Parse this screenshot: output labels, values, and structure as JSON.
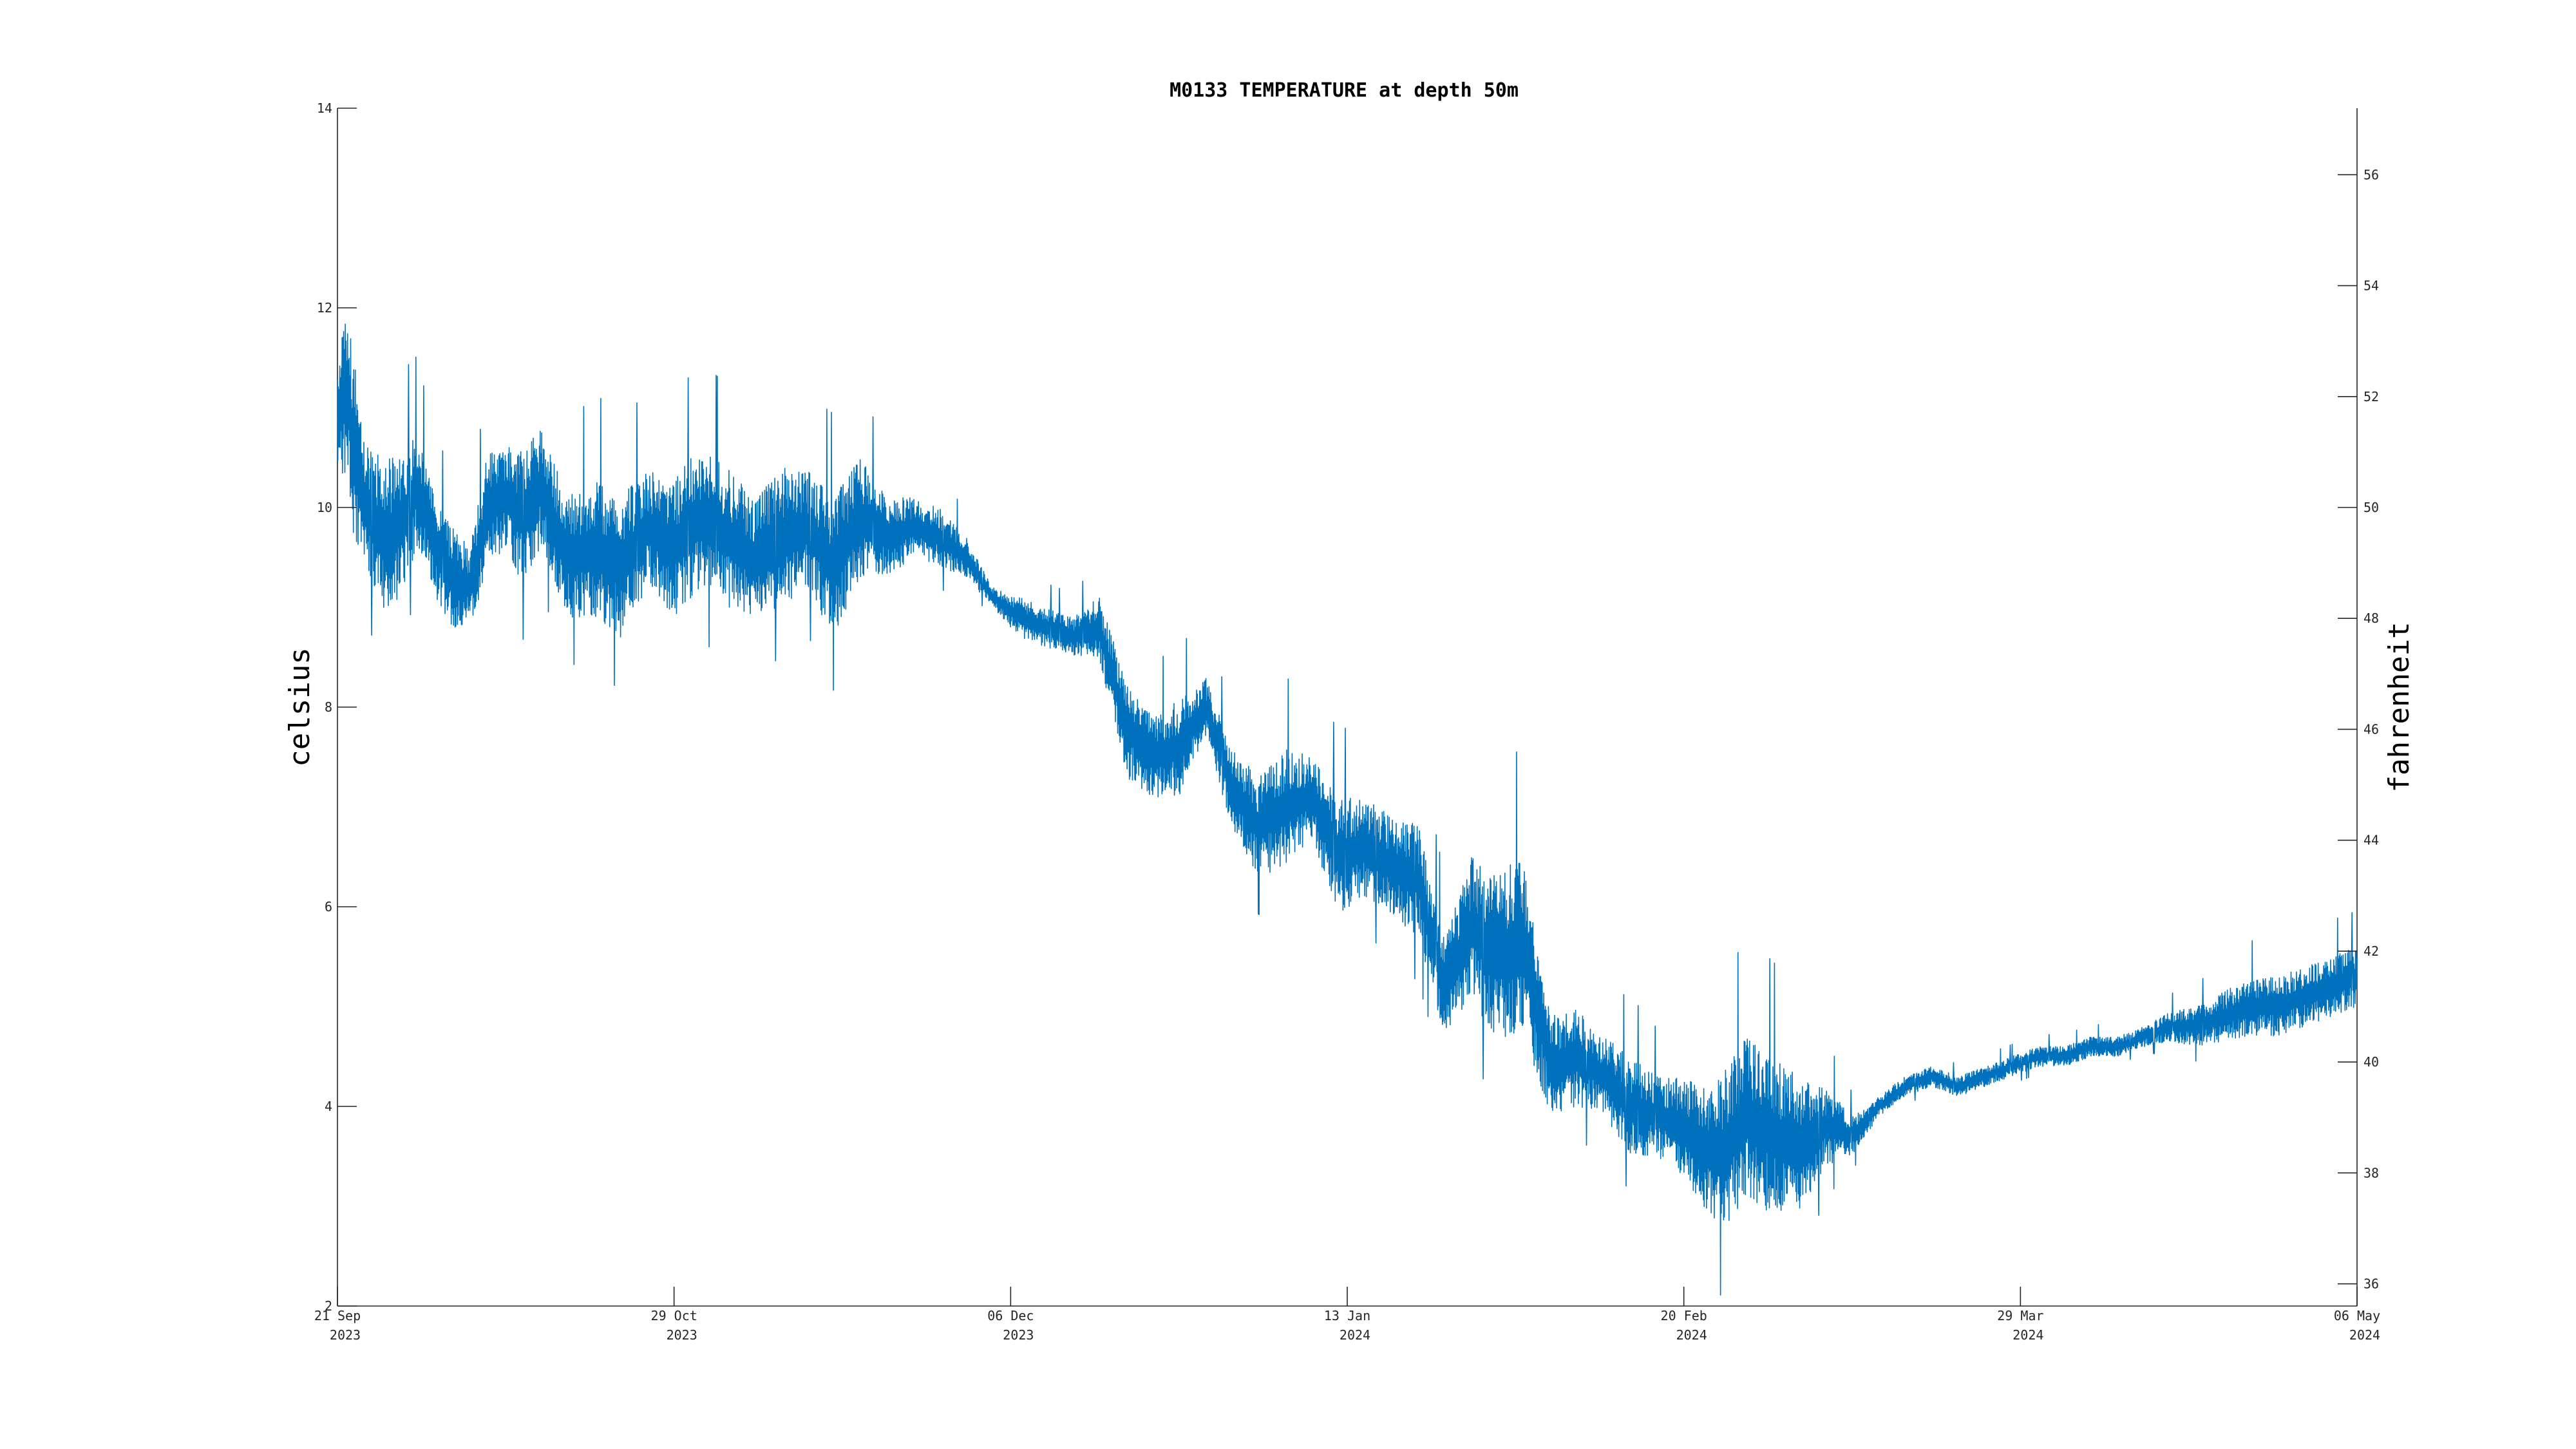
{
  "chart_data": {
    "type": "line",
    "title": "M0133 TEMPERATURE at depth 50m",
    "ylabel": "celsius",
    "ylabel_right": "fahrenheit",
    "x_range": [
      "2023-09-21",
      "2024-05-06"
    ],
    "ylim": [
      2,
      14
    ],
    "ylim_right": [
      35.6,
      57.2
    ],
    "grid": false,
    "x_ticks": [
      {
        "date": "2023-09-21",
        "day": "21 Sep",
        "year": "2023"
      },
      {
        "date": "2023-10-29",
        "day": "29 Oct",
        "year": "2023"
      },
      {
        "date": "2023-12-06",
        "day": "06 Dec",
        "year": "2023"
      },
      {
        "date": "2024-01-13",
        "day": "13 Jan",
        "year": "2024"
      },
      {
        "date": "2024-02-20",
        "day": "20 Feb",
        "year": "2024"
      },
      {
        "date": "2024-03-29",
        "day": "29 Mar",
        "year": "2024"
      },
      {
        "date": "2024-05-06",
        "day": "06 May",
        "year": "2024"
      }
    ],
    "y_ticks": [
      2,
      4,
      6,
      8,
      10,
      12,
      14
    ],
    "y_ticks_right": [
      36,
      38,
      40,
      42,
      44,
      46,
      48,
      50,
      52,
      54,
      56
    ],
    "color": "#0072bd",
    "series": [
      {
        "x": [
          "2023-09-21",
          "2023-09-22",
          "2023-09-23",
          "2023-09-24",
          "2023-09-26",
          "2023-09-28",
          "2023-09-30",
          "2023-10-02",
          "2023-10-04",
          "2023-10-06",
          "2023-10-08",
          "2023-10-10",
          "2023-10-12",
          "2023-10-14",
          "2023-10-17",
          "2023-10-20",
          "2023-10-23",
          "2023-10-26",
          "2023-10-29",
          "2023-11-01",
          "2023-11-04",
          "2023-11-07",
          "2023-11-10",
          "2023-11-13",
          "2023-11-16",
          "2023-11-19",
          "2023-11-22",
          "2023-11-25",
          "2023-11-28",
          "2023-12-01",
          "2023-12-04",
          "2023-12-07",
          "2023-12-10",
          "2023-12-13",
          "2023-12-16",
          "2023-12-19",
          "2023-12-22",
          "2023-12-25",
          "2023-12-28",
          "2023-12-31",
          "2024-01-03",
          "2024-01-06",
          "2024-01-09",
          "2024-01-12",
          "2024-01-15",
          "2024-01-18",
          "2024-01-21",
          "2024-01-24",
          "2024-01-27",
          "2024-01-30",
          "2024-02-02",
          "2024-02-05",
          "2024-02-08",
          "2024-02-11",
          "2024-02-14",
          "2024-02-17",
          "2024-02-20",
          "2024-02-22",
          "2024-02-24",
          "2024-02-27",
          "2024-03-01",
          "2024-03-04",
          "2024-03-07",
          "2024-03-10",
          "2024-03-13",
          "2024-03-16",
          "2024-03-19",
          "2024-03-22",
          "2024-03-25",
          "2024-03-28",
          "2024-03-31",
          "2024-04-03",
          "2024-04-06",
          "2024-04-09",
          "2024-04-12",
          "2024-04-15",
          "2024-04-18",
          "2024-04-21",
          "2024-04-24",
          "2024-04-27",
          "2024-04-30",
          "2024-05-03",
          "2024-05-06"
        ],
        "y": [
          10.8,
          11.2,
          10.5,
          10.1,
          9.7,
          9.8,
          10.2,
          9.6,
          9.3,
          9.2,
          10.0,
          10.1,
          9.9,
          10.2,
          9.5,
          9.6,
          9.4,
          9.8,
          9.6,
          9.9,
          9.7,
          9.5,
          9.7,
          9.8,
          9.4,
          9.9,
          9.7,
          9.8,
          9.7,
          9.5,
          9.1,
          8.9,
          8.8,
          8.7,
          8.8,
          7.8,
          7.5,
          7.6,
          8.0,
          7.2,
          6.8,
          7.0,
          7.1,
          6.5,
          6.6,
          6.4,
          6.3,
          5.2,
          5.8,
          5.5,
          5.6,
          4.4,
          4.5,
          4.3,
          4.0,
          3.9,
          3.8,
          3.6,
          3.5,
          3.9,
          3.7,
          3.6,
          3.8,
          3.7,
          4.0,
          4.2,
          4.3,
          4.2,
          4.3,
          4.4,
          4.5,
          4.5,
          4.6,
          4.6,
          4.7,
          4.8,
          4.8,
          4.9,
          5.0,
          5.0,
          5.1,
          5.2,
          5.3
        ],
        "noise": [
          0.5,
          0.9,
          0.9,
          0.6,
          0.8,
          0.7,
          0.6,
          0.5,
          0.5,
          0.4,
          0.6,
          0.5,
          0.7,
          0.6,
          0.6,
          0.7,
          0.7,
          0.6,
          0.7,
          0.7,
          0.7,
          0.6,
          0.7,
          0.6,
          0.7,
          0.6,
          0.4,
          0.3,
          0.3,
          0.2,
          0.1,
          0.2,
          0.2,
          0.2,
          0.3,
          0.5,
          0.4,
          0.5,
          0.3,
          0.4,
          0.5,
          0.6,
          0.4,
          0.6,
          0.5,
          0.5,
          0.6,
          0.5,
          0.7,
          0.9,
          0.9,
          0.5,
          0.5,
          0.4,
          0.5,
          0.4,
          0.5,
          0.6,
          0.8,
          0.8,
          0.8,
          0.7,
          0.4,
          0.2,
          0.1,
          0.1,
          0.1,
          0.1,
          0.1,
          0.1,
          0.1,
          0.1,
          0.1,
          0.1,
          0.1,
          0.15,
          0.2,
          0.25,
          0.3,
          0.3,
          0.3,
          0.3,
          0.3
        ]
      }
    ]
  }
}
